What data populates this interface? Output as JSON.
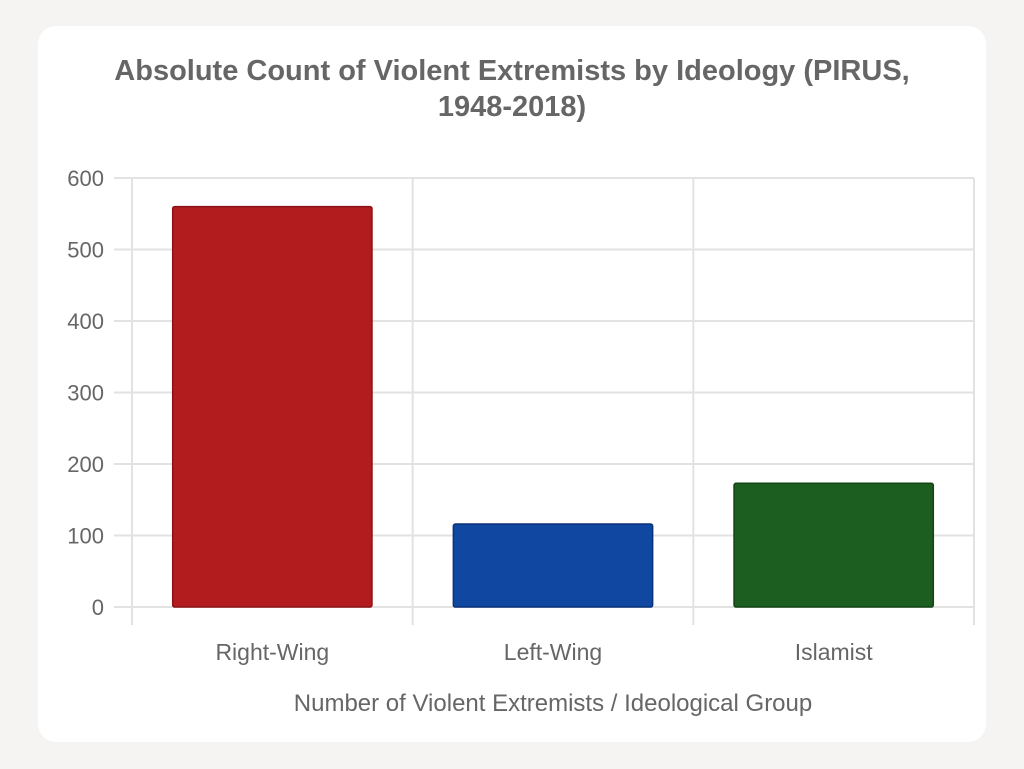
{
  "chart_data": {
    "type": "bar",
    "title_line1": "Absolute Count of Violent Extremists by Ideology (PIRUS,",
    "title_line2": "1948-2018)",
    "categories": [
      "Right-Wing",
      "Left-Wing",
      "Islamist"
    ],
    "values": [
      560,
      116,
      173
    ],
    "colors": [
      "#b21c1f",
      "#0f47a1",
      "#1b5e20"
    ],
    "border_colors": [
      "#8b1214",
      "#0a3278",
      "#134417"
    ],
    "xlabel": "Number of Violent Extremists / Ideological Group",
    "ylabel": "",
    "ylim": [
      0,
      600
    ],
    "yticks": [
      "0",
      "100",
      "200",
      "300",
      "400",
      "500",
      "600"
    ],
    "grid": true
  }
}
